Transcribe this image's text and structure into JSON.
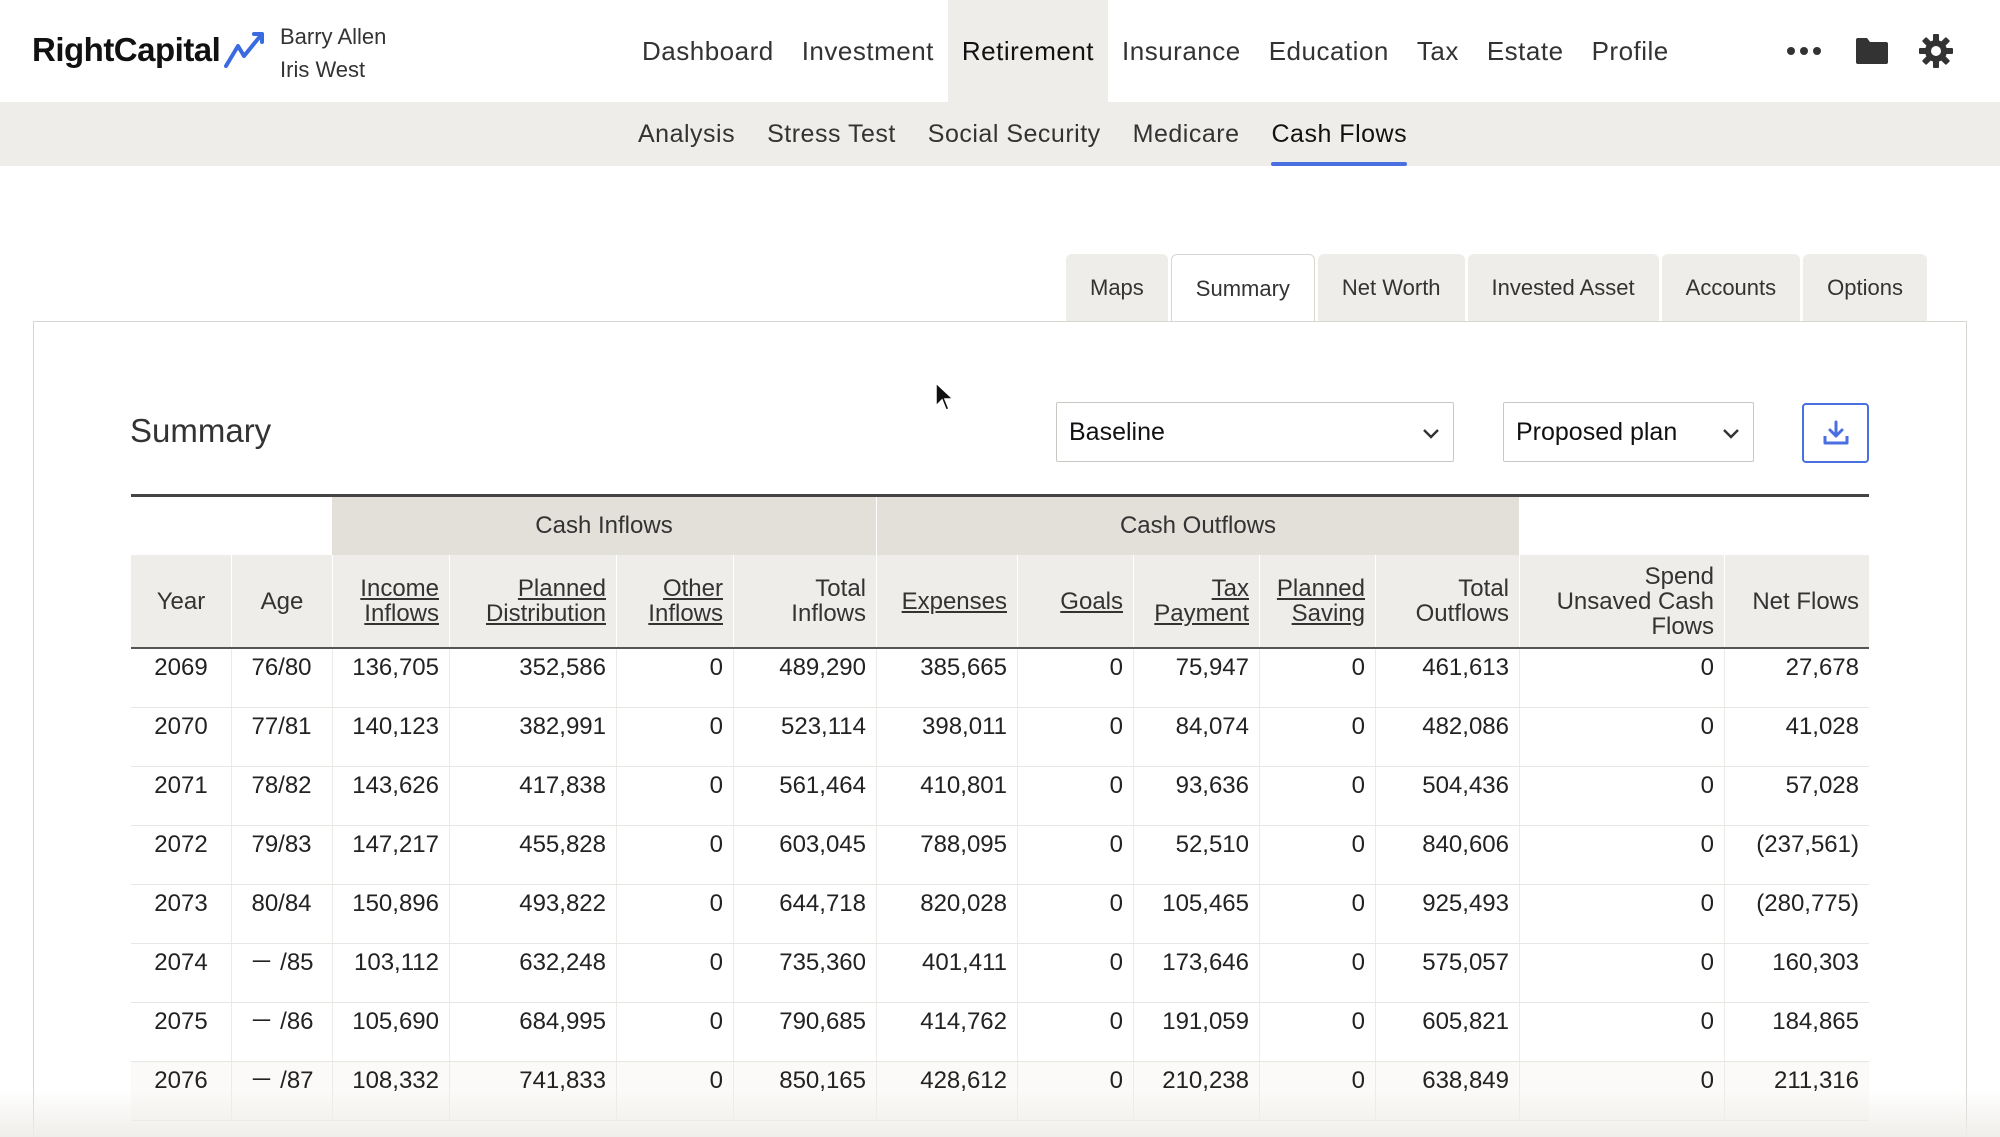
{
  "header": {
    "logo_text": "RightCapital",
    "client_primary": "Barry Allen",
    "client_secondary": "Iris West",
    "nav": [
      "Dashboard",
      "Investment",
      "Retirement",
      "Insurance",
      "Education",
      "Tax",
      "Estate",
      "Profile"
    ],
    "active_nav": "Retirement"
  },
  "subnav": {
    "items": [
      "Analysis",
      "Stress Test",
      "Social Security",
      "Medicare",
      "Cash Flows"
    ],
    "active": "Cash Flows"
  },
  "tabs": {
    "items": [
      "Maps",
      "Summary",
      "Net Worth",
      "Invested Asset",
      "Accounts",
      "Options"
    ],
    "active": "Summary"
  },
  "summary": {
    "title": "Summary",
    "scenario_left": "Baseline",
    "scenario_right": "Proposed plan"
  },
  "table": {
    "group_headers": {
      "inflows": "Cash Inflows",
      "outflows": "Cash Outflows"
    },
    "columns": {
      "year": "Year",
      "age": "Age",
      "income_inflows": [
        "Income",
        "Inflows"
      ],
      "planned_distribution": [
        "Planned",
        "Distribution"
      ],
      "other_inflows": [
        "Other",
        "Inflows"
      ],
      "total_inflows": [
        "Total",
        "Inflows"
      ],
      "expenses": "Expenses",
      "goals": "Goals",
      "tax_payment": [
        "Tax",
        "Payment"
      ],
      "planned_saving": [
        "Planned",
        "Saving"
      ],
      "total_outflows": [
        "Total",
        "Outflows"
      ],
      "spend_unsaved": [
        "Spend",
        "Unsaved Cash",
        "Flows"
      ],
      "net_flows": "Net Flows"
    },
    "rows": [
      [
        "2069",
        "76/80",
        "136,705",
        "352,586",
        "0",
        "489,290",
        "385,665",
        "0",
        "75,947",
        "0",
        "461,613",
        "0",
        "27,678"
      ],
      [
        "2070",
        "77/81",
        "140,123",
        "382,991",
        "0",
        "523,114",
        "398,011",
        "0",
        "84,074",
        "0",
        "482,086",
        "0",
        "41,028"
      ],
      [
        "2071",
        "78/82",
        "143,626",
        "417,838",
        "0",
        "561,464",
        "410,801",
        "0",
        "93,636",
        "0",
        "504,436",
        "0",
        "57,028"
      ],
      [
        "2072",
        "79/83",
        "147,217",
        "455,828",
        "0",
        "603,045",
        "788,095",
        "0",
        "52,510",
        "0",
        "840,606",
        "0",
        "(237,561)"
      ],
      [
        "2073",
        "80/84",
        "150,896",
        "493,822",
        "0",
        "644,718",
        "820,028",
        "0",
        "105,465",
        "0",
        "925,493",
        "0",
        "(280,775)"
      ],
      [
        "2074",
        "－ /85",
        "103,112",
        "632,248",
        "0",
        "735,360",
        "401,411",
        "0",
        "173,646",
        "0",
        "575,057",
        "0",
        "160,303"
      ],
      [
        "2075",
        "－ /86",
        "105,690",
        "684,995",
        "0",
        "790,685",
        "414,762",
        "0",
        "191,059",
        "0",
        "605,821",
        "0",
        "184,865"
      ],
      [
        "2076",
        "－ /87",
        "108,332",
        "741,833",
        "0",
        "850,165",
        "428,612",
        "0",
        "210,238",
        "0",
        "638,849",
        "0",
        "211,316"
      ]
    ]
  },
  "colors": {
    "accent": "#4a6fe0",
    "header_bg": "#eeede9",
    "group_bg": "#e3dfd9"
  }
}
